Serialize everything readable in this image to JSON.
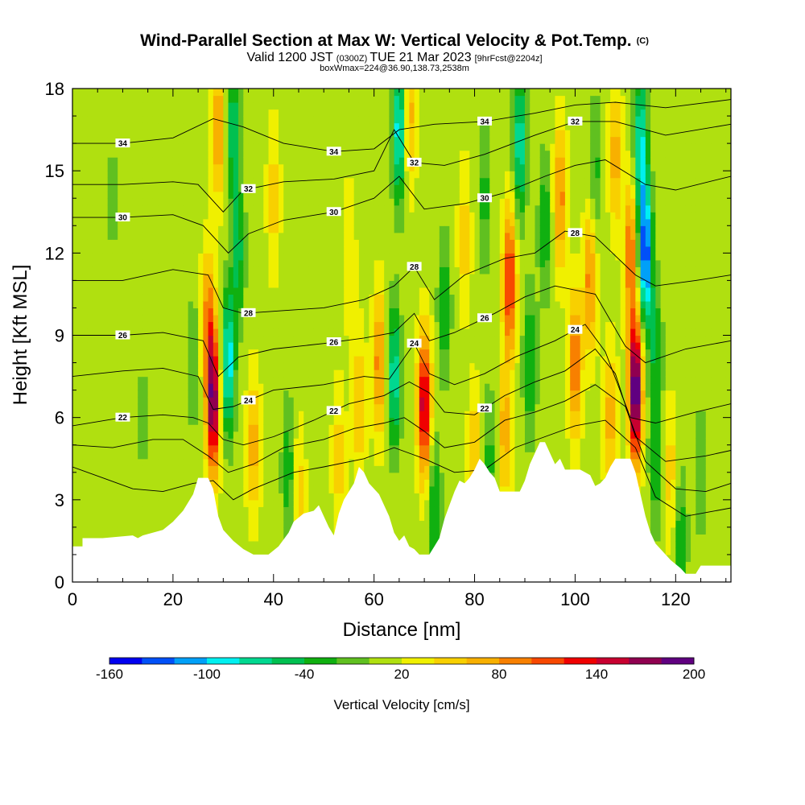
{
  "chart_data": {
    "type": "heatmap",
    "title": "Wind-Parallel Section at Max W: Vertical Velocity & Pot.Temp.",
    "title_tag": "(C)",
    "subtitle_main": "Valid 1200 JST",
    "subtitle_utc": "(0300Z)",
    "subtitle_date": "TUE 21 Mar 2023",
    "subtitle_fcst": "[9hrFcst@2204z]",
    "subtitle_box": "boxWmax=224@36.90,138.73,2538m",
    "xlabel": "Distance [nm]",
    "ylabel": "Height [Kft MSL]",
    "xlim": [
      0,
      131
    ],
    "ylim": [
      0,
      18
    ],
    "x_ticks": [
      0,
      20,
      40,
      60,
      80,
      100,
      120
    ],
    "y_ticks": [
      0,
      3,
      6,
      9,
      12,
      15,
      18
    ],
    "colorbar": {
      "title": "Vertical Velocity [cm/s]",
      "min": -160,
      "max": 200,
      "step": 20,
      "tick_values": [
        -160,
        -100,
        -40,
        20,
        80,
        140,
        200
      ],
      "colors": [
        "#0000f0",
        "#0050f8",
        "#00a0f8",
        "#00f0f0",
        "#00d890",
        "#00c050",
        "#10b010",
        "#60c020",
        "#b0e010",
        "#f0f000",
        "#f8d000",
        "#f8b000",
        "#f88000",
        "#f84800",
        "#f00000",
        "#c80030",
        "#900050",
        "#600080"
      ]
    },
    "w_features": [
      {
        "x": 28,
        "z": 6.5,
        "w": 170
      },
      {
        "x": 27,
        "z": 9.5,
        "w": 80
      },
      {
        "x": 24,
        "z": 8.0,
        "w": -30
      },
      {
        "x": 31,
        "z": 8.0,
        "w": -110
      },
      {
        "x": 33,
        "z": 12.0,
        "w": -60
      },
      {
        "x": 29,
        "z": 16.5,
        "w": 70
      },
      {
        "x": 32,
        "z": 16.5,
        "w": -70
      },
      {
        "x": 36,
        "z": 5.0,
        "w": 60
      },
      {
        "x": 40,
        "z": 14.0,
        "w": 40
      },
      {
        "x": 43,
        "z": 4.0,
        "w": -50
      },
      {
        "x": 45,
        "z": 3.2,
        "w": 40
      },
      {
        "x": 53,
        "z": 4.5,
        "w": 40
      },
      {
        "x": 57,
        "z": 6.5,
        "w": 50
      },
      {
        "x": 55,
        "z": 12.0,
        "w": 30
      },
      {
        "x": 61,
        "z": 8.0,
        "w": 80
      },
      {
        "x": 64,
        "z": 7.5,
        "w": -90
      },
      {
        "x": 65,
        "z": 16.5,
        "w": -110
      },
      {
        "x": 67,
        "z": 17.0,
        "w": 60
      },
      {
        "x": 70,
        "z": 6.5,
        "w": 150
      },
      {
        "x": 72,
        "z": 2.5,
        "w": -60
      },
      {
        "x": 74,
        "z": 10.0,
        "w": -50
      },
      {
        "x": 78,
        "z": 12.5,
        "w": 40
      },
      {
        "x": 80,
        "z": 4.5,
        "w": 50
      },
      {
        "x": 82,
        "z": 14.0,
        "w": -40
      },
      {
        "x": 83,
        "z": 4.5,
        "w": -40
      },
      {
        "x": 87,
        "z": 11.0,
        "w": 120
      },
      {
        "x": 86,
        "z": 5.5,
        "w": 60
      },
      {
        "x": 89,
        "z": 16.0,
        "w": -90
      },
      {
        "x": 91,
        "z": 8.0,
        "w": -60
      },
      {
        "x": 94,
        "z": 13.0,
        "w": -50
      },
      {
        "x": 97,
        "z": 14.0,
        "w": 80
      },
      {
        "x": 100,
        "z": 8.0,
        "w": 90
      },
      {
        "x": 103,
        "z": 11.0,
        "w": 80
      },
      {
        "x": 104,
        "z": 15.0,
        "w": -40
      },
      {
        "x": 107,
        "z": 6.0,
        "w": 60
      },
      {
        "x": 108,
        "z": 15.5,
        "w": 60
      },
      {
        "x": 112,
        "z": 7.0,
        "w": 200
      },
      {
        "x": 111,
        "z": 12.0,
        "w": 90
      },
      {
        "x": 113,
        "z": 16.0,
        "w": -100
      },
      {
        "x": 114,
        "z": 12.0,
        "w": -150
      },
      {
        "x": 116,
        "z": 8.5,
        "w": -50
      },
      {
        "x": 116,
        "z": 4.5,
        "w": -50
      },
      {
        "x": 119,
        "z": 4.0,
        "w": 40
      },
      {
        "x": 121,
        "z": 1.5,
        "w": -50
      },
      {
        "x": 125,
        "z": 4.0,
        "w": -30
      },
      {
        "x": 14,
        "z": 6.0,
        "w": -20
      },
      {
        "x": 8,
        "z": 14.0,
        "w": -20
      }
    ],
    "theta_contours": [
      {
        "label": "34",
        "points": [
          [
            0,
            16.0
          ],
          [
            10,
            16.0
          ],
          [
            20,
            16.2
          ],
          [
            28,
            16.9
          ],
          [
            34,
            16.6
          ],
          [
            42,
            16.0
          ],
          [
            52,
            15.7
          ],
          [
            60,
            15.8
          ],
          [
            65,
            16.5
          ],
          [
            72,
            16.7
          ],
          [
            82,
            16.8
          ],
          [
            92,
            17.1
          ],
          [
            100,
            17.4
          ],
          [
            108,
            17.5
          ],
          [
            118,
            17.3
          ],
          [
            131,
            17.6
          ]
        ]
      },
      {
        "label": "32",
        "points": [
          [
            0,
            14.5
          ],
          [
            10,
            14.5
          ],
          [
            20,
            14.6
          ],
          [
            25,
            14.5
          ],
          [
            30,
            13.5
          ],
          [
            34,
            14.3
          ],
          [
            42,
            14.6
          ],
          [
            52,
            14.7
          ],
          [
            60,
            15.0
          ],
          [
            64,
            16.5
          ],
          [
            68,
            15.3
          ],
          [
            74,
            15.2
          ],
          [
            82,
            15.6
          ],
          [
            92,
            16.3
          ],
          [
            100,
            16.8
          ],
          [
            108,
            16.8
          ],
          [
            118,
            16.3
          ],
          [
            131,
            16.7
          ]
        ]
      },
      {
        "label": "30",
        "points": [
          [
            0,
            13.3
          ],
          [
            10,
            13.3
          ],
          [
            20,
            13.4
          ],
          [
            26,
            13.0
          ],
          [
            31,
            12.0
          ],
          [
            35,
            12.7
          ],
          [
            42,
            13.2
          ],
          [
            52,
            13.5
          ],
          [
            60,
            14.0
          ],
          [
            65,
            14.8
          ],
          [
            70,
            13.6
          ],
          [
            78,
            13.8
          ],
          [
            86,
            14.2
          ],
          [
            94,
            14.8
          ],
          [
            100,
            15.2
          ],
          [
            106,
            15.4
          ],
          [
            114,
            14.5
          ],
          [
            120,
            14.3
          ],
          [
            131,
            14.8
          ]
        ]
      },
      {
        "label": "28",
        "points": [
          [
            0,
            11.0
          ],
          [
            10,
            11.0
          ],
          [
            20,
            11.4
          ],
          [
            27,
            11.2
          ],
          [
            30,
            10.0
          ],
          [
            34,
            9.8
          ],
          [
            42,
            9.9
          ],
          [
            50,
            10.0
          ],
          [
            58,
            10.3
          ],
          [
            64,
            10.8
          ],
          [
            68,
            11.5
          ],
          [
            72,
            10.3
          ],
          [
            78,
            11.2
          ],
          [
            86,
            11.8
          ],
          [
            92,
            12.0
          ],
          [
            98,
            12.8
          ],
          [
            104,
            12.6
          ],
          [
            112,
            11.2
          ],
          [
            116,
            10.8
          ],
          [
            124,
            11.0
          ],
          [
            131,
            11.2
          ]
        ]
      },
      {
        "label": "26",
        "points": [
          [
            0,
            9.0
          ],
          [
            10,
            9.0
          ],
          [
            18,
            9.1
          ],
          [
            26,
            8.8
          ],
          [
            29,
            7.5
          ],
          [
            33,
            8.2
          ],
          [
            40,
            8.5
          ],
          [
            50,
            8.7
          ],
          [
            58,
            8.9
          ],
          [
            64,
            9.1
          ],
          [
            68,
            9.8
          ],
          [
            71,
            8.8
          ],
          [
            76,
            9.1
          ],
          [
            84,
            9.8
          ],
          [
            90,
            10.4
          ],
          [
            96,
            10.8
          ],
          [
            104,
            10.5
          ],
          [
            110,
            8.6
          ],
          [
            114,
            8.0
          ],
          [
            122,
            8.5
          ],
          [
            131,
            8.8
          ]
        ]
      },
      {
        "label": "24",
        "points": [
          [
            0,
            7.5
          ],
          [
            10,
            7.7
          ],
          [
            18,
            7.8
          ],
          [
            25,
            7.5
          ],
          [
            28,
            6.3
          ],
          [
            32,
            6.4
          ],
          [
            40,
            7.0
          ],
          [
            50,
            7.2
          ],
          [
            58,
            7.5
          ],
          [
            63,
            7.4
          ],
          [
            68,
            8.7
          ],
          [
            71,
            7.6
          ],
          [
            76,
            7.2
          ],
          [
            82,
            7.6
          ],
          [
            88,
            8.2
          ],
          [
            96,
            8.8
          ],
          [
            102,
            9.4
          ],
          [
            106,
            8.4
          ],
          [
            111,
            6.0
          ],
          [
            116,
            5.8
          ],
          [
            124,
            6.2
          ],
          [
            131,
            6.5
          ]
        ]
      },
      {
        "label": "22",
        "points": [
          [
            0,
            5.7
          ],
          [
            10,
            6.0
          ],
          [
            18,
            6.1
          ],
          [
            24,
            6.0
          ],
          [
            27,
            5.8
          ],
          [
            30,
            5.2
          ],
          [
            34,
            5.0
          ],
          [
            40,
            5.3
          ],
          [
            48,
            5.9
          ],
          [
            55,
            6.5
          ],
          [
            62,
            6.8
          ],
          [
            67,
            7.3
          ],
          [
            71,
            6.9
          ],
          [
            74,
            6.2
          ],
          [
            80,
            6.1
          ],
          [
            86,
            6.8
          ],
          [
            92,
            7.3
          ],
          [
            98,
            7.7
          ],
          [
            104,
            8.5
          ],
          [
            108,
            7.6
          ],
          [
            112,
            5.3
          ],
          [
            118,
            4.4
          ],
          [
            126,
            4.6
          ],
          [
            131,
            4.8
          ]
        ]
      },
      {
        "label": "",
        "points": [
          [
            0,
            5.0
          ],
          [
            8,
            4.9
          ],
          [
            16,
            5.2
          ],
          [
            22,
            5.2
          ],
          [
            27,
            4.6
          ],
          [
            31,
            4.0
          ],
          [
            36,
            4.3
          ],
          [
            42,
            4.9
          ],
          [
            50,
            5.2
          ],
          [
            56,
            5.6
          ],
          [
            62,
            5.8
          ],
          [
            66,
            6.0
          ],
          [
            70,
            5.5
          ],
          [
            74,
            4.9
          ],
          [
            80,
            5.1
          ],
          [
            86,
            5.9
          ],
          [
            92,
            6.2
          ],
          [
            98,
            6.6
          ],
          [
            104,
            7.2
          ],
          [
            110,
            6.4
          ],
          [
            114,
            4.4
          ],
          [
            120,
            3.4
          ],
          [
            126,
            3.3
          ],
          [
            131,
            3.6
          ]
        ]
      },
      {
        "label": "",
        "points": [
          [
            0,
            4.2
          ],
          [
            6,
            3.8
          ],
          [
            12,
            3.4
          ],
          [
            18,
            3.3
          ],
          [
            24,
            3.6
          ],
          [
            28,
            3.7
          ],
          [
            32,
            3.0
          ],
          [
            36,
            3.4
          ],
          [
            44,
            4.0
          ],
          [
            50,
            4.2
          ],
          [
            58,
            4.5
          ],
          [
            64,
            4.9
          ],
          [
            70,
            4.5
          ],
          [
            76,
            4.0
          ],
          [
            82,
            4.1
          ],
          [
            88,
            4.9
          ],
          [
            94,
            5.3
          ],
          [
            100,
            5.7
          ],
          [
            106,
            5.9
          ],
          [
            112,
            4.9
          ],
          [
            116,
            3.1
          ],
          [
            122,
            2.4
          ],
          [
            131,
            2.7
          ]
        ]
      }
    ],
    "terrain": [
      [
        0,
        1.3
      ],
      [
        2,
        1.3
      ],
      [
        2,
        1.6
      ],
      [
        6,
        1.6
      ],
      [
        6,
        1.6
      ],
      [
        12,
        1.7
      ],
      [
        13,
        1.6
      ],
      [
        14,
        1.7
      ],
      [
        18,
        1.9
      ],
      [
        20,
        2.2
      ],
      [
        22,
        2.6
      ],
      [
        24,
        3.2
      ],
      [
        25,
        3.8
      ],
      [
        27,
        3.8
      ],
      [
        28,
        3.4
      ],
      [
        29,
        2.4
      ],
      [
        30,
        1.9
      ],
      [
        32,
        1.5
      ],
      [
        34,
        1.2
      ],
      [
        36,
        1.0
      ],
      [
        39,
        1.0
      ],
      [
        41,
        1.3
      ],
      [
        43,
        1.8
      ],
      [
        44,
        2.2
      ],
      [
        46,
        2.5
      ],
      [
        48,
        2.6
      ],
      [
        49,
        2.8
      ],
      [
        50,
        2.4
      ],
      [
        51,
        2.0
      ],
      [
        52,
        1.7
      ],
      [
        53,
        2.5
      ],
      [
        54,
        3.0
      ],
      [
        56,
        3.6
      ],
      [
        57,
        4.2
      ],
      [
        58,
        4.0
      ],
      [
        59,
        3.6
      ],
      [
        61,
        3.2
      ],
      [
        63,
        2.4
      ],
      [
        64,
        1.8
      ],
      [
        65,
        1.5
      ],
      [
        66,
        1.7
      ],
      [
        67,
        1.3
      ],
      [
        68,
        1.2
      ],
      [
        69,
        1.0
      ],
      [
        71,
        1.0
      ],
      [
        72,
        1.3
      ],
      [
        73,
        1.6
      ],
      [
        74,
        2.3
      ],
      [
        75,
        2.8
      ],
      [
        76,
        3.3
      ],
      [
        77,
        3.7
      ],
      [
        78,
        3.6
      ],
      [
        79,
        3.8
      ],
      [
        80,
        4.1
      ],
      [
        81,
        4.5
      ],
      [
        82,
        4.3
      ],
      [
        83,
        4.0
      ],
      [
        84,
        3.8
      ],
      [
        85,
        3.3
      ],
      [
        88,
        3.3
      ],
      [
        89,
        3.3
      ],
      [
        90,
        3.7
      ],
      [
        91,
        4.3
      ],
      [
        92,
        4.7
      ],
      [
        93,
        5.1
      ],
      [
        94,
        5.1
      ],
      [
        95,
        4.7
      ],
      [
        96,
        4.3
      ],
      [
        97,
        4.5
      ],
      [
        98,
        4.1
      ],
      [
        101,
        4.1
      ],
      [
        102,
        4.0
      ],
      [
        103,
        3.9
      ],
      [
        104,
        3.5
      ],
      [
        105,
        3.6
      ],
      [
        106,
        3.8
      ],
      [
        107,
        4.2
      ],
      [
        108,
        4.5
      ],
      [
        111,
        4.5
      ],
      [
        112,
        4.0
      ],
      [
        113,
        3.2
      ],
      [
        114,
        2.4
      ],
      [
        115,
        1.8
      ],
      [
        116,
        1.4
      ],
      [
        117,
        1.2
      ],
      [
        118,
        1.0
      ],
      [
        119,
        0.8
      ],
      [
        121,
        0.5
      ],
      [
        122,
        0.3
      ],
      [
        124,
        0.3
      ],
      [
        125,
        0.6
      ],
      [
        131,
        0.6
      ]
    ]
  }
}
